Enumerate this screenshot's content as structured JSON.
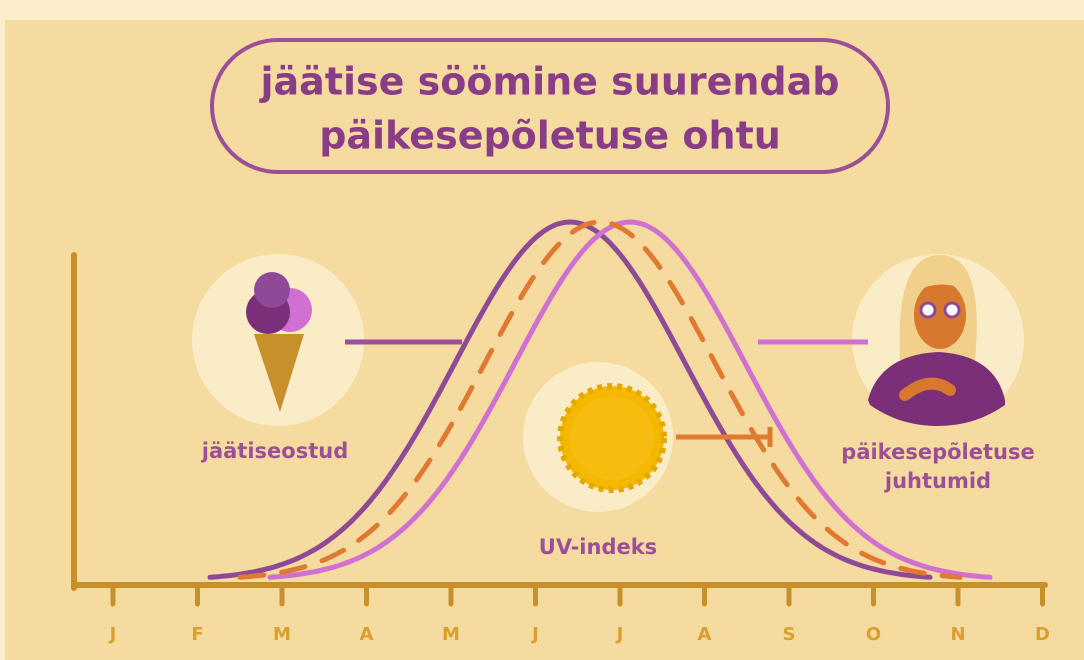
{
  "title": [
    "jäätise söömine suurendab",
    "päikesepõletuse ohtu"
  ],
  "labels": {
    "ice_cream": "jäätiseostud",
    "uv": "UV-indeks",
    "sunburn": [
      "päikesepõletuse",
      "juhtumid"
    ]
  },
  "months": [
    "J",
    "F",
    "M",
    "A",
    "M",
    "J",
    "J",
    "A",
    "S",
    "O",
    "N",
    "D"
  ]
}
